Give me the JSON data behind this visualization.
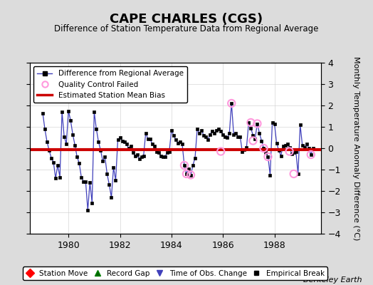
{
  "title": "CAPE CHARLES (CGS)",
  "subtitle": "Difference of Station Temperature Data from Regional Average",
  "ylabel": "Monthly Temperature Anomaly Difference (°C)",
  "background_color": "#dcdcdc",
  "plot_bg_color": "#ffffff",
  "xlim": [
    1978.5,
    1989.8
  ],
  "ylim": [
    -4,
    4
  ],
  "yticks": [
    -4,
    -3,
    -2,
    -1,
    0,
    1,
    2,
    3,
    4
  ],
  "xticks": [
    1980,
    1982,
    1984,
    1986,
    1988
  ],
  "bias_y": -0.08,
  "main_color": "#4040bb",
  "bias_color": "#cc0000",
  "qc_color": "#ff99dd",
  "marker_color": "#000000",
  "berkeley_earth_text": "Berkeley Earth",
  "times": [
    1979.0,
    1979.083,
    1979.167,
    1979.25,
    1979.333,
    1979.417,
    1979.5,
    1979.583,
    1979.667,
    1979.75,
    1979.833,
    1979.917,
    1980.0,
    1980.083,
    1980.167,
    1980.25,
    1980.333,
    1980.417,
    1980.5,
    1980.583,
    1980.667,
    1980.75,
    1980.833,
    1980.917,
    1981.0,
    1981.083,
    1981.167,
    1981.25,
    1981.333,
    1981.417,
    1981.5,
    1981.583,
    1981.667,
    1981.75,
    1981.833,
    1981.917,
    1982.0,
    1982.083,
    1982.167,
    1982.25,
    1982.333,
    1982.417,
    1982.5,
    1982.583,
    1982.667,
    1982.75,
    1982.833,
    1982.917,
    1983.0,
    1983.083,
    1983.167,
    1983.25,
    1983.333,
    1983.417,
    1983.5,
    1983.583,
    1983.667,
    1983.75,
    1983.833,
    1983.917,
    1984.0,
    1984.083,
    1984.167,
    1984.25,
    1984.333,
    1984.417,
    1984.5,
    1984.583,
    1984.667,
    1984.75,
    1984.833,
    1984.917,
    1985.0,
    1985.083,
    1985.167,
    1985.25,
    1985.333,
    1985.417,
    1985.5,
    1985.583,
    1985.667,
    1985.75,
    1985.833,
    1985.917,
    1986.0,
    1986.083,
    1986.167,
    1986.25,
    1986.333,
    1986.417,
    1986.5,
    1986.583,
    1986.667,
    1986.75,
    1986.833,
    1986.917,
    1987.0,
    1987.083,
    1987.167,
    1987.25,
    1987.333,
    1987.417,
    1987.5,
    1987.583,
    1987.667,
    1987.75,
    1987.833,
    1987.917,
    1988.0,
    1988.083,
    1988.167,
    1988.25,
    1988.333,
    1988.417,
    1988.5,
    1988.583,
    1988.667,
    1988.75,
    1988.833,
    1988.917,
    1989.0,
    1989.083,
    1989.167,
    1989.25,
    1989.333,
    1989.417,
    1989.5
  ],
  "values": [
    1.65,
    0.9,
    0.3,
    -0.1,
    -0.45,
    -0.65,
    -1.4,
    -0.8,
    -1.35,
    1.7,
    0.55,
    0.2,
    1.75,
    1.3,
    0.65,
    0.15,
    -0.4,
    -0.7,
    -1.35,
    -1.55,
    -1.55,
    -2.9,
    -1.6,
    -2.55,
    1.7,
    0.9,
    0.3,
    -0.1,
    -0.6,
    -0.4,
    -1.2,
    -1.7,
    -2.3,
    -0.9,
    -1.5,
    0.4,
    0.5,
    0.35,
    0.3,
    0.2,
    0.0,
    0.1,
    -0.2,
    -0.35,
    -0.3,
    -0.5,
    -0.4,
    -0.35,
    0.7,
    0.45,
    0.45,
    0.2,
    0.1,
    -0.15,
    -0.2,
    -0.35,
    -0.4,
    -0.4,
    -0.2,
    -0.15,
    0.85,
    0.6,
    0.4,
    0.25,
    0.3,
    0.2,
    -0.8,
    -1.2,
    -0.95,
    -1.25,
    -0.8,
    -0.45,
    0.9,
    0.7,
    0.85,
    0.6,
    0.55,
    0.4,
    0.65,
    0.8,
    0.7,
    0.85,
    0.9,
    0.8,
    0.65,
    0.55,
    0.5,
    0.7,
    2.1,
    0.65,
    0.7,
    0.55,
    0.55,
    -0.15,
    -0.05,
    0.05,
    1.2,
    0.95,
    0.6,
    0.45,
    1.15,
    0.7,
    0.35,
    0.0,
    -0.2,
    -0.4,
    -1.25,
    1.2,
    1.15,
    0.25,
    -0.1,
    -0.35,
    0.1,
    0.15,
    0.2,
    0.05,
    -0.25,
    -0.2,
    -0.15,
    -1.2,
    1.1,
    0.15,
    0.05,
    0.2,
    0.0,
    -0.3,
    0.0
  ],
  "qc_failed_times": [
    1984.5,
    1984.583,
    1984.75,
    1985.917,
    1986.333,
    1987.083,
    1987.167,
    1987.333,
    1987.583,
    1987.75,
    1988.583,
    1988.75,
    1989.417
  ],
  "qc_failed_values": [
    -0.8,
    -1.2,
    -1.25,
    -0.15,
    2.1,
    1.2,
    0.35,
    1.15,
    0.0,
    -0.4,
    -0.15,
    -1.2,
    -0.3
  ]
}
